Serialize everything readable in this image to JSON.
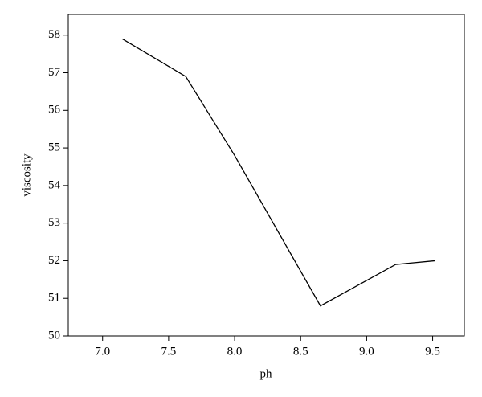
{
  "chart_data": {
    "type": "line",
    "x_label": "ph",
    "y_label": "viscosity",
    "x": [
      7.15,
      7.63,
      8.0,
      8.65,
      9.22,
      9.52
    ],
    "series": [
      {
        "color": "#000000",
        "values": [
          57.9,
          56.9,
          54.8,
          50.8,
          51.9,
          52.0
        ]
      }
    ],
    "xlim": [
      6.74,
      9.74
    ],
    "ylim": [
      50,
      58.55
    ],
    "xticks": [
      {
        "value": 7,
        "label": "7.0"
      },
      7.5,
      {
        "value": 8,
        "label": "8.0"
      },
      8.5,
      {
        "value": 9,
        "label": "9.0"
      },
      9.5
    ],
    "yticks": [
      50,
      51,
      52,
      53,
      54,
      55,
      56,
      57,
      58
    ]
  }
}
